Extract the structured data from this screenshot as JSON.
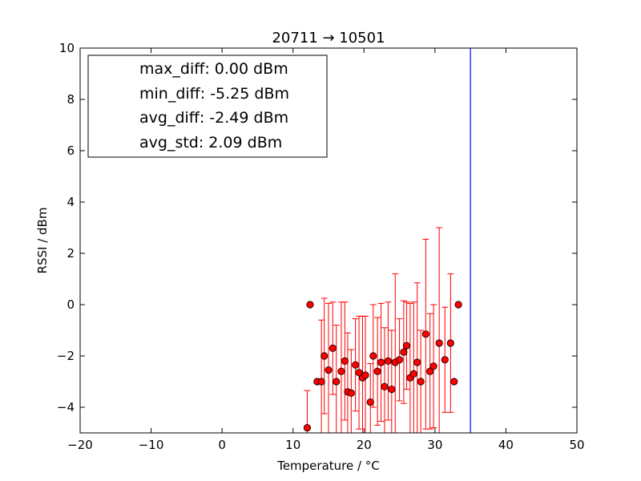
{
  "chart_data": {
    "type": "scatter",
    "title": "20711 → 10501",
    "xlabel": "Temperature / °C",
    "ylabel": "RSSI / dBm",
    "xlim": [
      -20,
      50
    ],
    "ylim": [
      -5,
      10
    ],
    "xticks": [
      "−20",
      "−10",
      "0",
      "10",
      "20",
      "30",
      "40",
      "50"
    ],
    "xtick_values": [
      -20,
      -10,
      0,
      10,
      20,
      30,
      40,
      50
    ],
    "yticks": [
      "−4",
      "−2",
      "0",
      "2",
      "4",
      "6",
      "8",
      "10"
    ],
    "ytick_values": [
      -4,
      -2,
      0,
      2,
      4,
      6,
      8,
      10
    ],
    "grid": false,
    "legend_position": "top-left",
    "legend_entries": [
      "max_diff: 0.00 dBm",
      "min_diff: -5.25 dBm",
      "avg_diff: -2.49 dBm",
      "avg_std: 2.09 dBm"
    ],
    "vertical_line_x": 35,
    "vertical_line_color": "#0000ff",
    "marker_color": "#ff0000",
    "errorbar_color": "#ff0000",
    "points": [
      {
        "x": 12.0,
        "y": -4.8,
        "err": 1.45
      },
      {
        "x": 12.4,
        "y": 0.0,
        "err": 0.0
      },
      {
        "x": 13.4,
        "y": -3.0,
        "err": 0.0
      },
      {
        "x": 14.0,
        "y": -3.0,
        "err": 2.4
      },
      {
        "x": 14.4,
        "y": -2.0,
        "err": 2.25
      },
      {
        "x": 15.0,
        "y": -2.55,
        "err": 2.6
      },
      {
        "x": 15.6,
        "y": -1.7,
        "err": 1.8
      },
      {
        "x": 16.1,
        "y": -3.0,
        "err": 2.2
      },
      {
        "x": 16.8,
        "y": -2.6,
        "err": 2.7
      },
      {
        "x": 17.3,
        "y": -2.2,
        "err": 2.3
      },
      {
        "x": 17.7,
        "y": -3.4,
        "err": 2.3
      },
      {
        "x": 18.2,
        "y": -3.45,
        "err": 1.7
      },
      {
        "x": 18.8,
        "y": -2.35,
        "err": 1.8
      },
      {
        "x": 19.3,
        "y": -2.65,
        "err": 2.2
      },
      {
        "x": 19.8,
        "y": -2.85,
        "err": 2.4
      },
      {
        "x": 20.2,
        "y": -2.75,
        "err": 2.3
      },
      {
        "x": 20.9,
        "y": -3.8,
        "err": 1.5
      },
      {
        "x": 21.3,
        "y": -2.0,
        "err": 2.0
      },
      {
        "x": 21.9,
        "y": -2.6,
        "err": 2.1
      },
      {
        "x": 22.4,
        "y": -2.25,
        "err": 2.3
      },
      {
        "x": 22.9,
        "y": -3.2,
        "err": 2.3
      },
      {
        "x": 23.4,
        "y": -2.2,
        "err": 2.3
      },
      {
        "x": 23.9,
        "y": -3.3,
        "err": 2.3
      },
      {
        "x": 24.4,
        "y": -2.25,
        "err": 3.45
      },
      {
        "x": 25.0,
        "y": -2.15,
        "err": 1.6
      },
      {
        "x": 25.6,
        "y": -1.85,
        "err": 2.0
      },
      {
        "x": 26.0,
        "y": -1.6,
        "err": 1.7
      },
      {
        "x": 26.5,
        "y": -2.85,
        "err": 2.9
      },
      {
        "x": 27.0,
        "y": -2.7,
        "err": 2.8
      },
      {
        "x": 27.5,
        "y": -2.25,
        "err": 3.1
      },
      {
        "x": 28.0,
        "y": -3.0,
        "err": 2.0
      },
      {
        "x": 28.7,
        "y": -1.15,
        "err": 3.7
      },
      {
        "x": 29.3,
        "y": -2.6,
        "err": 2.25
      },
      {
        "x": 29.8,
        "y": -2.4,
        "err": 2.4
      },
      {
        "x": 30.6,
        "y": -1.5,
        "err": 4.5
      },
      {
        "x": 31.4,
        "y": -2.15,
        "err": 2.05
      },
      {
        "x": 32.2,
        "y": -1.5,
        "err": 2.7
      },
      {
        "x": 32.7,
        "y": -3.0,
        "err": 0.0
      },
      {
        "x": 33.3,
        "y": 0.0,
        "err": 0.0
      }
    ]
  }
}
